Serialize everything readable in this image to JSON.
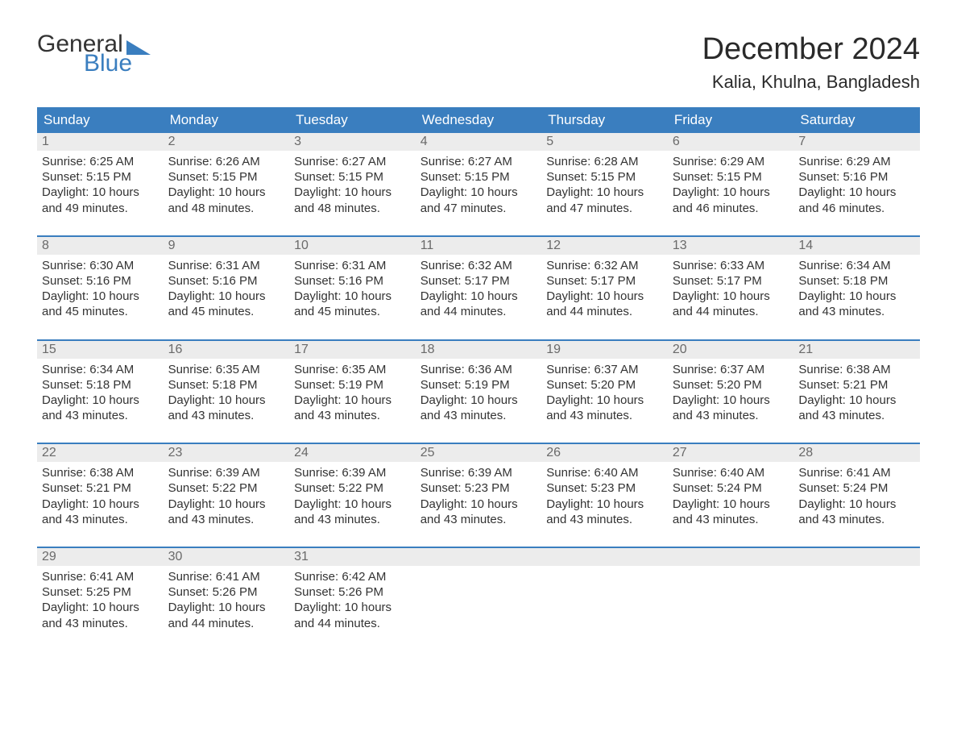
{
  "brand": {
    "general": "General",
    "blue": "Blue"
  },
  "title": "December 2024",
  "location": "Kalia, Khulna, Bangladesh",
  "colors": {
    "header_bg": "#3a7ebf",
    "header_text": "#ffffff",
    "daynum_bg": "#ececec",
    "daynum_text": "#6a6a6a",
    "body_text": "#333333",
    "rule": "#3a7ebf",
    "page_bg": "#ffffff"
  },
  "typography": {
    "title_fontsize": 38,
    "location_fontsize": 22,
    "weekday_fontsize": 17,
    "daynum_fontsize": 16,
    "body_fontsize": 15
  },
  "weekdays": [
    "Sunday",
    "Monday",
    "Tuesday",
    "Wednesday",
    "Thursday",
    "Friday",
    "Saturday"
  ],
  "weeks": [
    [
      {
        "n": "1",
        "sunrise": "Sunrise: 6:25 AM",
        "sunset": "Sunset: 5:15 PM",
        "day1": "Daylight: 10 hours",
        "day2": "and 49 minutes."
      },
      {
        "n": "2",
        "sunrise": "Sunrise: 6:26 AM",
        "sunset": "Sunset: 5:15 PM",
        "day1": "Daylight: 10 hours",
        "day2": "and 48 minutes."
      },
      {
        "n": "3",
        "sunrise": "Sunrise: 6:27 AM",
        "sunset": "Sunset: 5:15 PM",
        "day1": "Daylight: 10 hours",
        "day2": "and 48 minutes."
      },
      {
        "n": "4",
        "sunrise": "Sunrise: 6:27 AM",
        "sunset": "Sunset: 5:15 PM",
        "day1": "Daylight: 10 hours",
        "day2": "and 47 minutes."
      },
      {
        "n": "5",
        "sunrise": "Sunrise: 6:28 AM",
        "sunset": "Sunset: 5:15 PM",
        "day1": "Daylight: 10 hours",
        "day2": "and 47 minutes."
      },
      {
        "n": "6",
        "sunrise": "Sunrise: 6:29 AM",
        "sunset": "Sunset: 5:15 PM",
        "day1": "Daylight: 10 hours",
        "day2": "and 46 minutes."
      },
      {
        "n": "7",
        "sunrise": "Sunrise: 6:29 AM",
        "sunset": "Sunset: 5:16 PM",
        "day1": "Daylight: 10 hours",
        "day2": "and 46 minutes."
      }
    ],
    [
      {
        "n": "8",
        "sunrise": "Sunrise: 6:30 AM",
        "sunset": "Sunset: 5:16 PM",
        "day1": "Daylight: 10 hours",
        "day2": "and 45 minutes."
      },
      {
        "n": "9",
        "sunrise": "Sunrise: 6:31 AM",
        "sunset": "Sunset: 5:16 PM",
        "day1": "Daylight: 10 hours",
        "day2": "and 45 minutes."
      },
      {
        "n": "10",
        "sunrise": "Sunrise: 6:31 AM",
        "sunset": "Sunset: 5:16 PM",
        "day1": "Daylight: 10 hours",
        "day2": "and 45 minutes."
      },
      {
        "n": "11",
        "sunrise": "Sunrise: 6:32 AM",
        "sunset": "Sunset: 5:17 PM",
        "day1": "Daylight: 10 hours",
        "day2": "and 44 minutes."
      },
      {
        "n": "12",
        "sunrise": "Sunrise: 6:32 AM",
        "sunset": "Sunset: 5:17 PM",
        "day1": "Daylight: 10 hours",
        "day2": "and 44 minutes."
      },
      {
        "n": "13",
        "sunrise": "Sunrise: 6:33 AM",
        "sunset": "Sunset: 5:17 PM",
        "day1": "Daylight: 10 hours",
        "day2": "and 44 minutes."
      },
      {
        "n": "14",
        "sunrise": "Sunrise: 6:34 AM",
        "sunset": "Sunset: 5:18 PM",
        "day1": "Daylight: 10 hours",
        "day2": "and 43 minutes."
      }
    ],
    [
      {
        "n": "15",
        "sunrise": "Sunrise: 6:34 AM",
        "sunset": "Sunset: 5:18 PM",
        "day1": "Daylight: 10 hours",
        "day2": "and 43 minutes."
      },
      {
        "n": "16",
        "sunrise": "Sunrise: 6:35 AM",
        "sunset": "Sunset: 5:18 PM",
        "day1": "Daylight: 10 hours",
        "day2": "and 43 minutes."
      },
      {
        "n": "17",
        "sunrise": "Sunrise: 6:35 AM",
        "sunset": "Sunset: 5:19 PM",
        "day1": "Daylight: 10 hours",
        "day2": "and 43 minutes."
      },
      {
        "n": "18",
        "sunrise": "Sunrise: 6:36 AM",
        "sunset": "Sunset: 5:19 PM",
        "day1": "Daylight: 10 hours",
        "day2": "and 43 minutes."
      },
      {
        "n": "19",
        "sunrise": "Sunrise: 6:37 AM",
        "sunset": "Sunset: 5:20 PM",
        "day1": "Daylight: 10 hours",
        "day2": "and 43 minutes."
      },
      {
        "n": "20",
        "sunrise": "Sunrise: 6:37 AM",
        "sunset": "Sunset: 5:20 PM",
        "day1": "Daylight: 10 hours",
        "day2": "and 43 minutes."
      },
      {
        "n": "21",
        "sunrise": "Sunrise: 6:38 AM",
        "sunset": "Sunset: 5:21 PM",
        "day1": "Daylight: 10 hours",
        "day2": "and 43 minutes."
      }
    ],
    [
      {
        "n": "22",
        "sunrise": "Sunrise: 6:38 AM",
        "sunset": "Sunset: 5:21 PM",
        "day1": "Daylight: 10 hours",
        "day2": "and 43 minutes."
      },
      {
        "n": "23",
        "sunrise": "Sunrise: 6:39 AM",
        "sunset": "Sunset: 5:22 PM",
        "day1": "Daylight: 10 hours",
        "day2": "and 43 minutes."
      },
      {
        "n": "24",
        "sunrise": "Sunrise: 6:39 AM",
        "sunset": "Sunset: 5:22 PM",
        "day1": "Daylight: 10 hours",
        "day2": "and 43 minutes."
      },
      {
        "n": "25",
        "sunrise": "Sunrise: 6:39 AM",
        "sunset": "Sunset: 5:23 PM",
        "day1": "Daylight: 10 hours",
        "day2": "and 43 minutes."
      },
      {
        "n": "26",
        "sunrise": "Sunrise: 6:40 AM",
        "sunset": "Sunset: 5:23 PM",
        "day1": "Daylight: 10 hours",
        "day2": "and 43 minutes."
      },
      {
        "n": "27",
        "sunrise": "Sunrise: 6:40 AM",
        "sunset": "Sunset: 5:24 PM",
        "day1": "Daylight: 10 hours",
        "day2": "and 43 minutes."
      },
      {
        "n": "28",
        "sunrise": "Sunrise: 6:41 AM",
        "sunset": "Sunset: 5:24 PM",
        "day1": "Daylight: 10 hours",
        "day2": "and 43 minutes."
      }
    ],
    [
      {
        "n": "29",
        "sunrise": "Sunrise: 6:41 AM",
        "sunset": "Sunset: 5:25 PM",
        "day1": "Daylight: 10 hours",
        "day2": "and 43 minutes."
      },
      {
        "n": "30",
        "sunrise": "Sunrise: 6:41 AM",
        "sunset": "Sunset: 5:26 PM",
        "day1": "Daylight: 10 hours",
        "day2": "and 44 minutes."
      },
      {
        "n": "31",
        "sunrise": "Sunrise: 6:42 AM",
        "sunset": "Sunset: 5:26 PM",
        "day1": "Daylight: 10 hours",
        "day2": "and 44 minutes."
      },
      null,
      null,
      null,
      null
    ]
  ]
}
